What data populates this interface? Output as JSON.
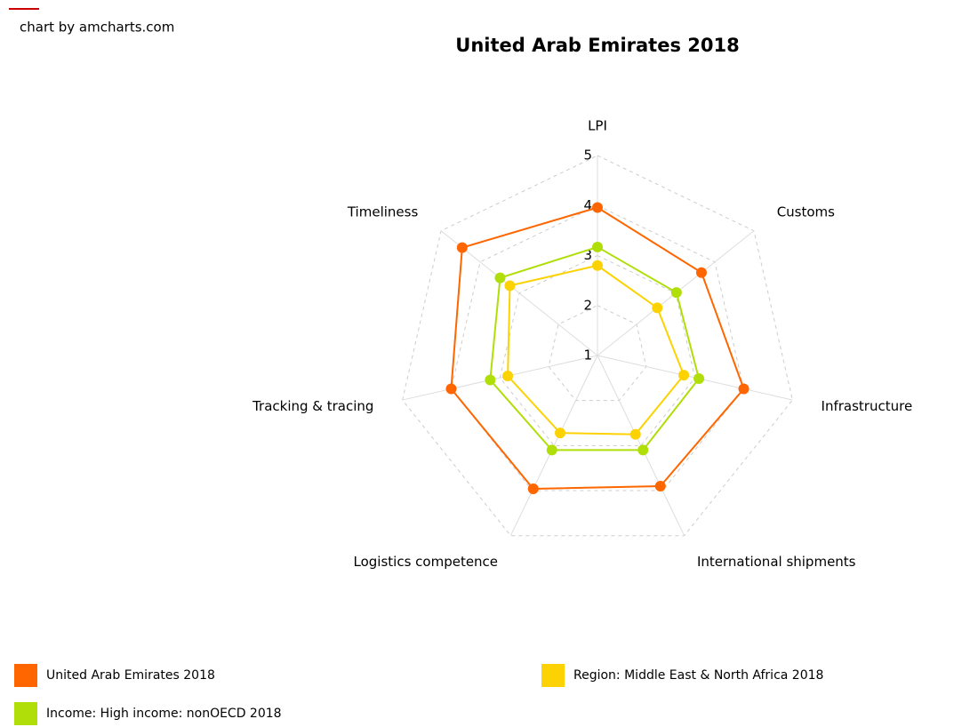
{
  "watermark": "chart by amcharts.com",
  "chart_data": {
    "type": "radar",
    "title": "United Arab Emirates 2018",
    "categories": [
      "LPI",
      "Customs",
      "Infrastructure",
      "International shipments",
      "Logistics competence",
      "Tracking & tracing",
      "Timeliness"
    ],
    "ylim": [
      1,
      5
    ],
    "yticks": [
      1,
      2,
      3,
      4,
      5
    ],
    "grid": true,
    "series": [
      {
        "name": "United Arab Emirates 2018",
        "color": "#ff6600",
        "values": [
          3.96,
          3.66,
          4.0,
          3.9,
          3.96,
          4.0,
          4.46
        ]
      },
      {
        "name": "Region: Middle East & North Africa 2018",
        "color": "#fcd202",
        "values": [
          2.8,
          2.53,
          2.77,
          2.75,
          2.72,
          2.84,
          3.24
        ]
      },
      {
        "name": "Income: High income: nonOECD 2018",
        "color": "#b0de09",
        "values": [
          3.17,
          3.02,
          3.08,
          3.1,
          3.1,
          3.2,
          3.49
        ]
      }
    ]
  }
}
